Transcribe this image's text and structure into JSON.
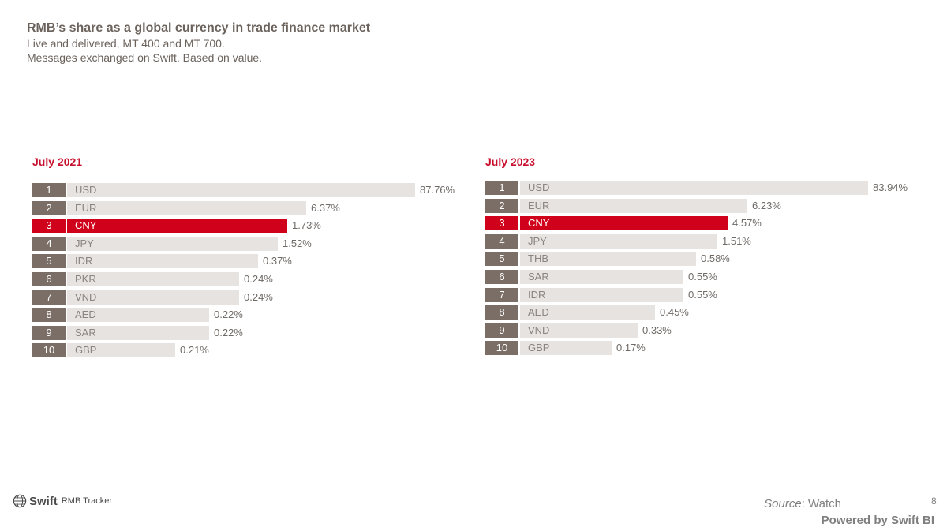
{
  "header": {
    "title": "RMB’s share as a global currency in trade finance market",
    "subtitle1": "Live and delivered, MT 400 and MT 700.",
    "subtitle2": "Messages exchanged on Swift. Based on value."
  },
  "chart_data": [
    {
      "type": "bar",
      "title": "July 2021",
      "categories": [
        "USD",
        "EUR",
        "CNY",
        "JPY",
        "IDR",
        "PKR",
        "VND",
        "AED",
        "SAR",
        "GBP"
      ],
      "ranks": [
        "1",
        "2",
        "3",
        "4",
        "5",
        "6",
        "7",
        "8",
        "9",
        "10"
      ],
      "values": [
        87.76,
        6.37,
        1.73,
        1.52,
        0.37,
        0.24,
        0.24,
        0.22,
        0.22,
        0.21
      ],
      "labels": [
        "87.76%",
        "6.37%",
        "1.73%",
        "1.52%",
        "0.37%",
        "0.24%",
        "0.24%",
        "0.22%",
        "0.22%",
        "0.21%"
      ],
      "bar_scale": [
        1.0,
        0.688,
        0.632,
        0.605,
        0.548,
        0.495,
        0.495,
        0.408,
        0.408,
        0.31
      ],
      "highlight": "CNY",
      "highlight_color": "#d0021b",
      "bar_color": "#e6e3e0",
      "rank_color": "#7a6e66"
    },
    {
      "type": "bar",
      "title": "July 2023",
      "categories": [
        "USD",
        "EUR",
        "CNY",
        "JPY",
        "THB",
        "SAR",
        "IDR",
        "AED",
        "VND",
        "GBP"
      ],
      "ranks": [
        "1",
        "2",
        "3",
        "4",
        "5",
        "6",
        "7",
        "8",
        "9",
        "10"
      ],
      "values": [
        83.94,
        6.23,
        4.57,
        1.51,
        0.58,
        0.55,
        0.55,
        0.45,
        0.33,
        0.17
      ],
      "labels": [
        "83.94%",
        "6.23%",
        "4.57%",
        "1.51%",
        "0.58%",
        "0.55%",
        "0.55%",
        "0.45%",
        "0.33%",
        "0.17%"
      ],
      "bar_scale": [
        1.0,
        0.654,
        0.596,
        0.567,
        0.505,
        0.47,
        0.47,
        0.388,
        0.338,
        0.264
      ],
      "highlight": "CNY",
      "highlight_color": "#d0021b",
      "bar_color": "#e6e3e0",
      "rank_color": "#7a6e66"
    }
  ],
  "footer": {
    "brand": "Swift",
    "product": "RMB Tracker",
    "source_label": "Source",
    "source_value": ": Watch",
    "page": "8",
    "powered": "Powered by Swift BI"
  }
}
